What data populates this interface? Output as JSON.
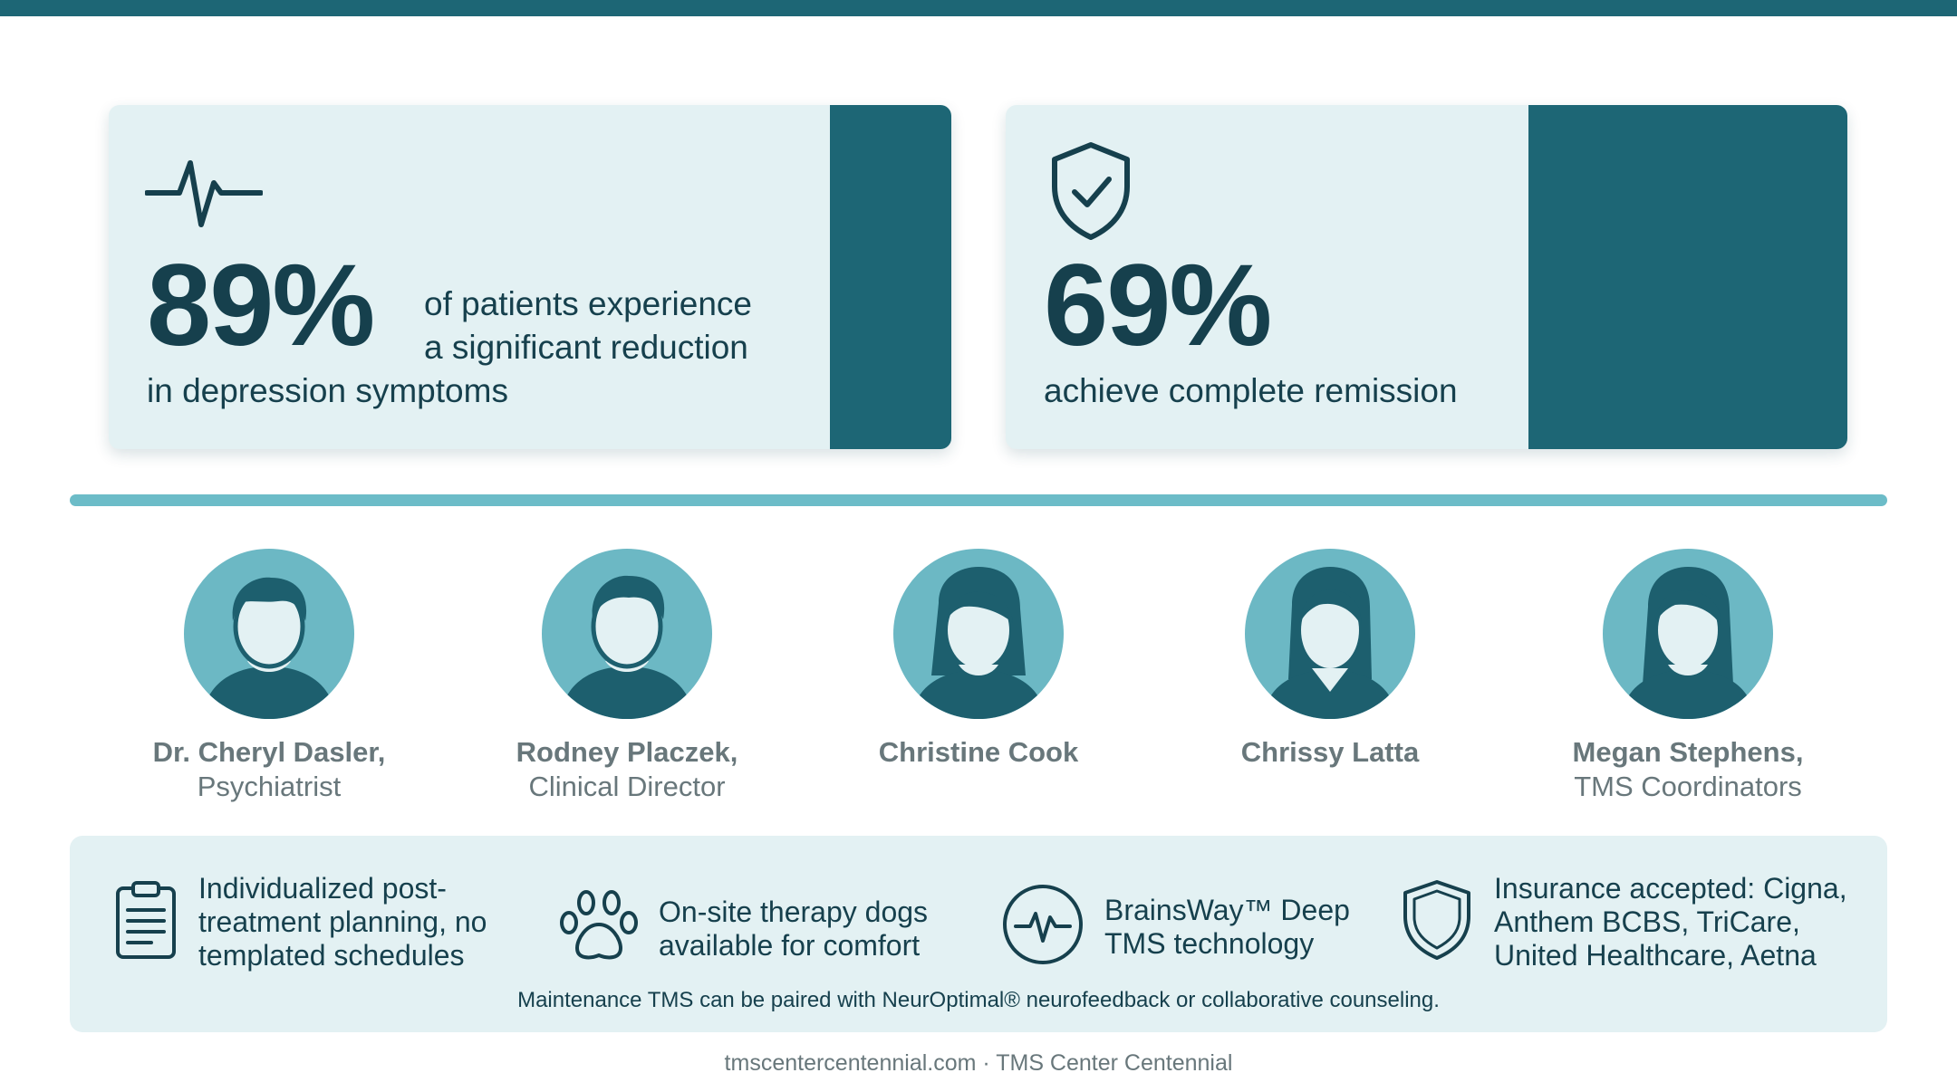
{
  "stats": [
    {
      "icon": "heartbeat-icon",
      "value": "89%",
      "text_side": [
        "of patients experience",
        "a significant reduction"
      ],
      "text_line": "in depression symptoms"
    },
    {
      "icon": "shield-check-icon",
      "value": "69%",
      "text_line": "achieve complete remission"
    }
  ],
  "team": [
    {
      "name": "Dr. Cheryl Dasler,",
      "role": "Psychiatrist"
    },
    {
      "name": "Rodney Placzek,",
      "role": "Clinical Director"
    },
    {
      "name": "Christine Cook",
      "role": ""
    },
    {
      "name": "Chrissy Latta",
      "role": ""
    },
    {
      "name": "Megan Stephens,",
      "role": "TMS Coordinators"
    }
  ],
  "features": [
    {
      "icon": "clipboard-icon",
      "lines": [
        "Individualized post-",
        "treatment planning, no",
        "templated schedules"
      ]
    },
    {
      "icon": "paw-icon",
      "lines": [
        "On-site therapy dogs",
        "available for comfort"
      ]
    },
    {
      "icon": "pulse-circle-icon",
      "lines": [
        "BrainsWay™ Deep",
        "TMS technology"
      ]
    },
    {
      "icon": "shield-icon",
      "lines": [
        "Insurance accepted: Cigna,",
        "Anthem BCBS, TriCare,",
        "United Healthcare, Aetna"
      ]
    }
  ],
  "footnote": "Maintenance TMS can be paired with NeurOptimal® neurofeedback or collaborative counseling.",
  "footer": "tmscentercentennial.com · TMS Center Centennial",
  "colors": {
    "primary": "#1d6675",
    "light": "#e3f1f3",
    "accent": "#6cbcc8",
    "text": "#16404d",
    "muted": "#68777b"
  }
}
